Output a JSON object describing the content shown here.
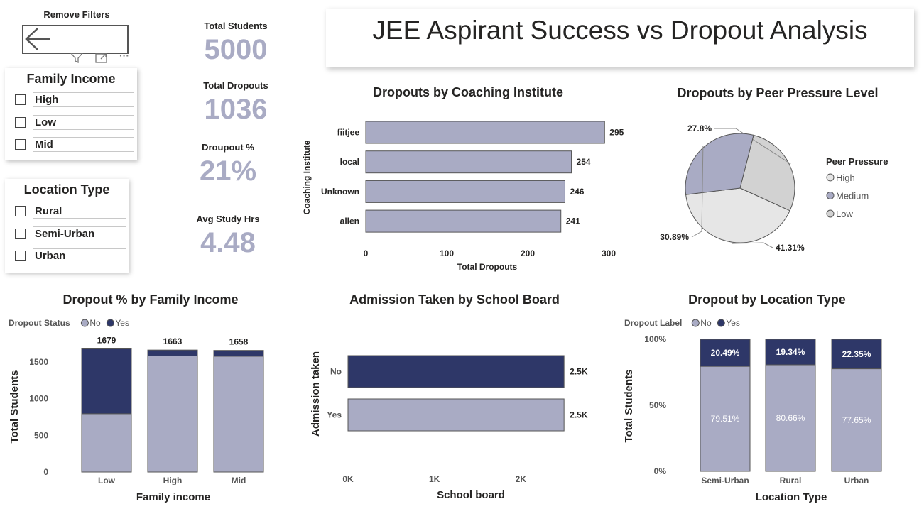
{
  "page_title": "JEE Aspirant Success vs Dropout Analysis",
  "remove_filters": "Remove Filters",
  "icons": {
    "back": "back-arrow-icon",
    "filter": "filter-icon",
    "focus": "focus-mode-icon",
    "more": "more-options-icon"
  },
  "slicers": {
    "family_income": {
      "title": "Family Income",
      "items": [
        "High",
        "Low",
        "Mid"
      ]
    },
    "location_type": {
      "title": "Location Type",
      "items": [
        "Rural",
        "Semi-Urban",
        "Urban"
      ]
    }
  },
  "kpis": [
    {
      "label": "Total Students",
      "value": "5000"
    },
    {
      "label": "Total Dropouts",
      "value": "1036"
    },
    {
      "label": "Droupout %",
      "value": "21%"
    },
    {
      "label": "Avg Study Hrs",
      "value": "4.48"
    }
  ],
  "colors": {
    "light": "#a9abc4",
    "dark": "#2e3768",
    "pie_high": "#d2d2d2",
    "pie_low": "#e6e6e6",
    "border": "#555555"
  },
  "chart_data": [
    {
      "id": "coaching",
      "type": "bar",
      "orientation": "horizontal",
      "title": "Dropouts by Coaching Institute",
      "xlabel": "Total Dropouts",
      "ylabel": "Coaching Institute",
      "categories": [
        "fiitjee",
        "local",
        "Unknown",
        "allen"
      ],
      "values": [
        295,
        254,
        246,
        241
      ],
      "xlim": [
        0,
        300
      ],
      "xticks": [
        "0",
        "100",
        "200",
        "300"
      ]
    },
    {
      "id": "peer",
      "type": "pie",
      "title": "Dropouts by Peer Pressure Level",
      "legend_title": "Peer Pressure",
      "legend_position": "right",
      "slices": [
        {
          "name": "High",
          "value": 27.8,
          "label": "27.8%"
        },
        {
          "name": "Low",
          "value": 41.31,
          "label": "41.31%"
        },
        {
          "name": "Medium",
          "value": 30.89,
          "label": "30.89%"
        }
      ],
      "legend": [
        "High",
        "Medium",
        "Low"
      ]
    },
    {
      "id": "income",
      "type": "bar",
      "stacked": true,
      "title": "Dropout % by Family Income",
      "legend_title": "Dropout Status",
      "legend": [
        "No",
        "Yes"
      ],
      "xlabel": "Family income",
      "ylabel": "Total Students",
      "categories": [
        "Low",
        "High",
        "Mid"
      ],
      "series": [
        {
          "name": "No",
          "values": [
            795,
            1583,
            1578
          ]
        },
        {
          "name": "Yes",
          "values": [
            884,
            80,
            80
          ]
        }
      ],
      "totals": [
        "1679",
        "1663",
        "1658"
      ],
      "ylim": [
        0,
        1750
      ],
      "yticks": [
        {
          "v": 0,
          "t": "0"
        },
        {
          "v": 500,
          "t": "500"
        },
        {
          "v": 1000,
          "t": "1000"
        },
        {
          "v": 1500,
          "t": "1500"
        }
      ]
    },
    {
      "id": "board",
      "type": "bar",
      "orientation": "horizontal",
      "title": "Admission Taken by School Board",
      "xlabel": "School board",
      "ylabel": "Admission taken",
      "categories": [
        "No",
        "Yes"
      ],
      "values": [
        2500,
        2500
      ],
      "value_labels": [
        "2.5K",
        "2.5K"
      ],
      "xlim": [
        0,
        3000
      ],
      "xticks": [
        {
          "v": 0,
          "t": "0K"
        },
        {
          "v": 1000,
          "t": "1K"
        },
        {
          "v": 2000,
          "t": "2K"
        }
      ]
    },
    {
      "id": "location",
      "type": "bar",
      "stacked": true,
      "percent": true,
      "title": "Dropout by Location Type",
      "legend_title": "Dropout Label",
      "legend": [
        "No",
        "Yes"
      ],
      "xlabel": "Location Type",
      "ylabel": "Total Students",
      "categories": [
        "Semi-Urban",
        "Rural",
        "Urban"
      ],
      "series": [
        {
          "name": "No",
          "values": [
            79.51,
            80.66,
            77.65
          ],
          "labels": [
            "79.51%",
            "80.66%",
            "77.65%"
          ]
        },
        {
          "name": "Yes",
          "values": [
            20.49,
            19.34,
            22.35
          ],
          "labels": [
            "20.49%",
            "19.34%",
            "22.35%"
          ]
        }
      ],
      "yticks": [
        {
          "v": 0,
          "t": "0%"
        },
        {
          "v": 50,
          "t": "50%"
        },
        {
          "v": 100,
          "t": "100%"
        }
      ]
    }
  ]
}
